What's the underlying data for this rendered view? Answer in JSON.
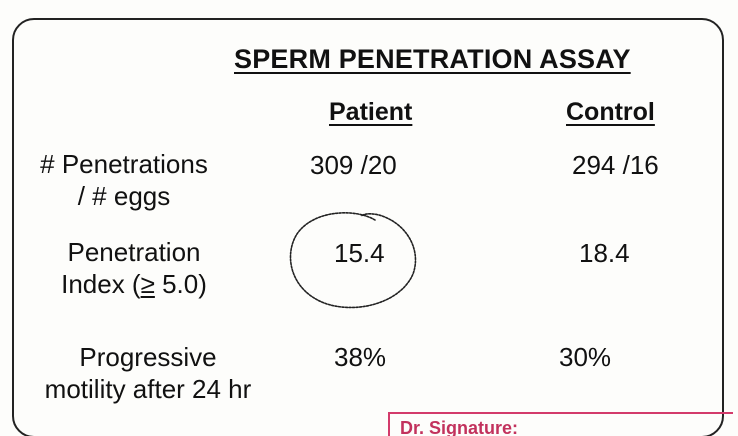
{
  "title": "SPERM PENETRATION ASSAY",
  "columns": {
    "patient": "Patient",
    "control": "Control"
  },
  "rows": [
    {
      "label_lines": [
        "# Penetrations",
        "/ # eggs"
      ],
      "patient": "309 /20",
      "control": "294 /16"
    },
    {
      "label_lines": [
        "Penetration",
        "Index (",
        "≥",
        " 5.0)"
      ],
      "patient": "15.4",
      "control": "18.4"
    },
    {
      "label_lines": [
        "Progressive",
        "motility after 24 hr"
      ],
      "patient": "38%",
      "control": "30%"
    }
  ],
  "stamp_text": "Dr. Signature:"
}
